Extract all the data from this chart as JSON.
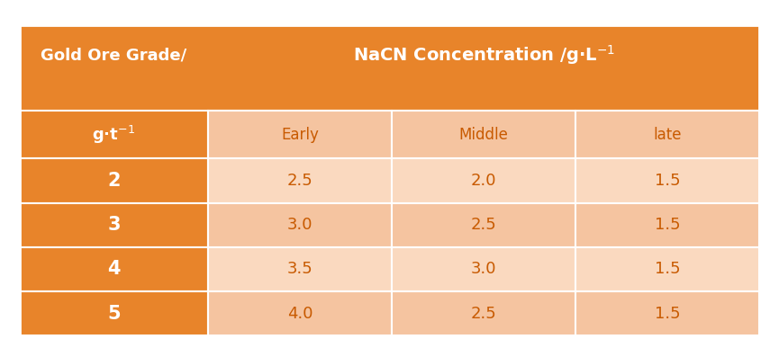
{
  "title_row1_col1": "Gold Ore Grade/",
  "title_row1_col2": "NaCN Concentration /g·L$^{-1}$",
  "title_row2_col1": "g·t$^{-1}$",
  "subheaders": [
    "Early",
    "Middle",
    "late"
  ],
  "row_labels": [
    "2",
    "3",
    "4",
    "5"
  ],
  "data": [
    [
      "2.5",
      "2.0",
      "1.5"
    ],
    [
      "3.0",
      "2.5",
      "1.5"
    ],
    [
      "3.5",
      "3.0",
      "1.5"
    ],
    [
      "4.0",
      "2.5",
      "1.5"
    ]
  ],
  "orange_bg": "#E8842A",
  "light_orange_bg": "#F5C4A0",
  "lighter_orange_bg": "#FAD9BF",
  "data_text_color": "#C85A00",
  "fig_bg": "#FFFFFF",
  "fig_width": 8.65,
  "fig_height": 3.97
}
